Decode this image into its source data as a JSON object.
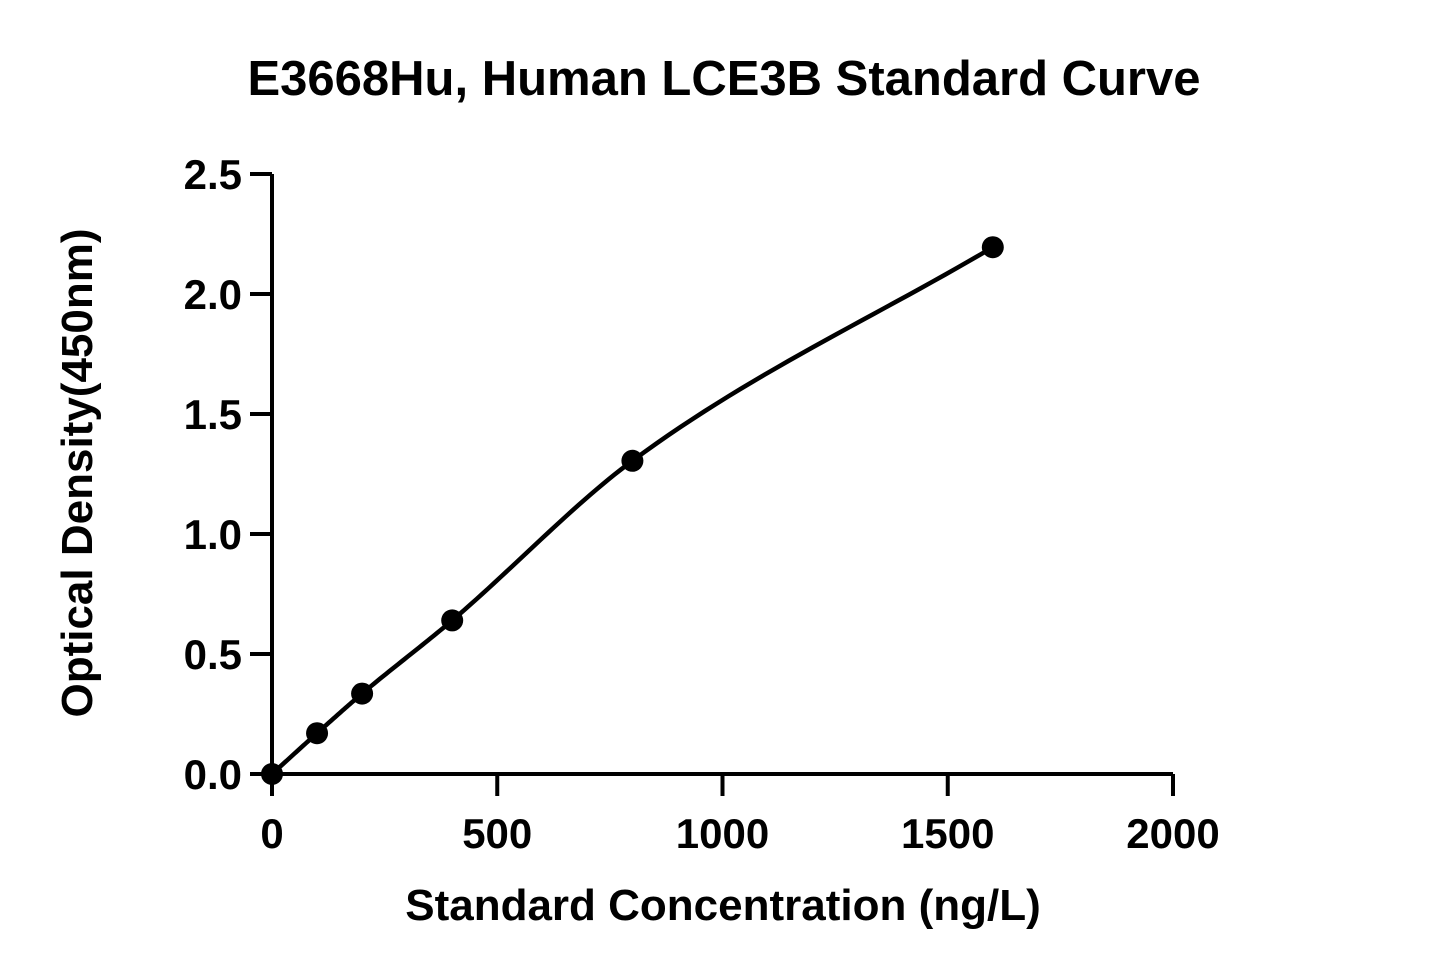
{
  "chart_data": {
    "type": "scatter",
    "title": "E3668Hu, Human LCE3B Standard Curve",
    "xlabel": "Standard Concentration (ng/L)",
    "ylabel": "Optical Density(450nm)",
    "xlim": [
      0,
      2000
    ],
    "ylim": [
      0,
      2.5
    ],
    "xticks": [
      0,
      500,
      1000,
      1500,
      2000
    ],
    "yticks": [
      0.0,
      0.5,
      1.0,
      1.5,
      2.0,
      2.5
    ],
    "xtick_labels": [
      "0",
      "500",
      "1000",
      "1500",
      "2000"
    ],
    "ytick_labels": [
      "0.0",
      "0.5",
      "1.0",
      "1.5",
      "2.0",
      "2.5"
    ],
    "grid": false,
    "legend": "none",
    "series": [
      {
        "x": [
          0,
          100,
          200,
          400,
          800,
          1600
        ],
        "y": [
          0.0,
          0.17,
          0.335,
          0.64,
          1.305,
          2.195
        ],
        "marker": "circle",
        "color": "#000000",
        "fit_curve": true
      }
    ]
  }
}
